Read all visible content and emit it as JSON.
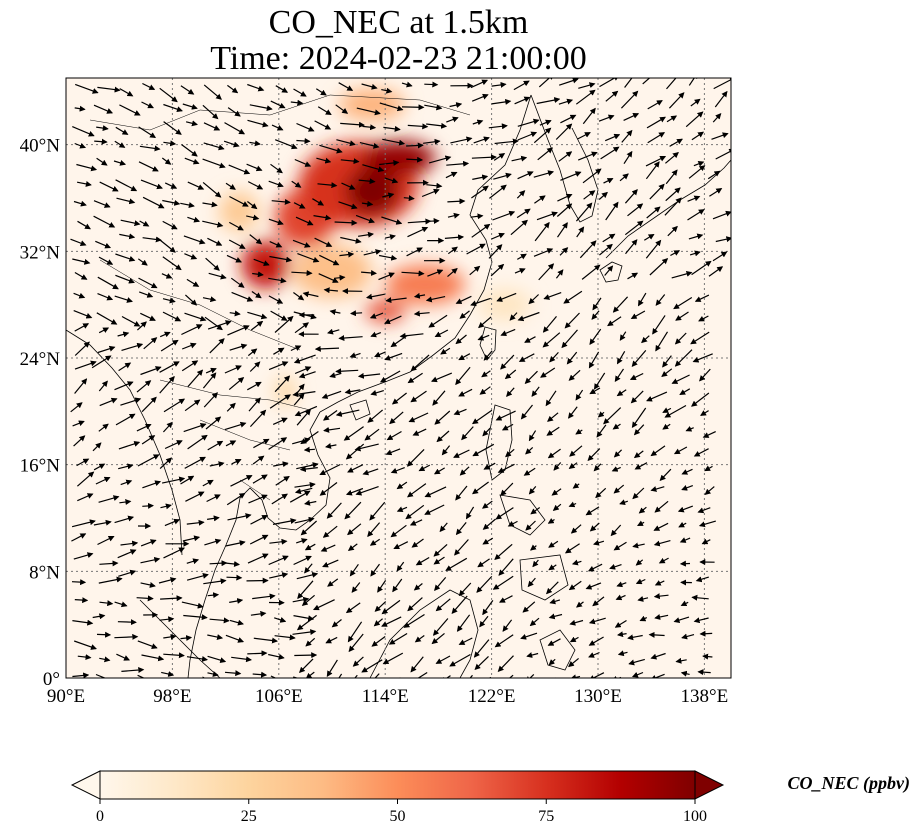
{
  "title": {
    "line1": "CO_NEC at 1.5km",
    "line2": "Time: 2024-02-23 21:00:00"
  },
  "map": {
    "lon_range": [
      90,
      140
    ],
    "lat_range": [
      0,
      45
    ],
    "lon_ticks": [
      {
        "value": 90,
        "label": "90°E"
      },
      {
        "value": 98,
        "label": "98°E"
      },
      {
        "value": 106,
        "label": "106°E"
      },
      {
        "value": 114,
        "label": "114°E"
      },
      {
        "value": 122,
        "label": "122°E"
      },
      {
        "value": 130,
        "label": "130°E"
      },
      {
        "value": 138,
        "label": "138°E"
      }
    ],
    "lat_ticks": [
      {
        "value": 0,
        "label": "0°"
      },
      {
        "value": 8,
        "label": "8°N"
      },
      {
        "value": 16,
        "label": "16°N"
      },
      {
        "value": 24,
        "label": "24°N"
      },
      {
        "value": 32,
        "label": "32°N"
      },
      {
        "value": 40,
        "label": "40°N"
      }
    ],
    "gridlines": "dotted",
    "background_color": "#fff5eb",
    "coastline_color": "#000000",
    "vector_color": "#000000",
    "plumes": [
      {
        "lon": 112.0,
        "lat": 37.0,
        "rlon": 4.5,
        "rlat": 3.2,
        "value": 75
      },
      {
        "lon": 115.0,
        "lat": 39.0,
        "rlon": 2.8,
        "rlat": 1.3,
        "value": 95
      },
      {
        "lon": 113.0,
        "lat": 36.5,
        "rlon": 2.0,
        "rlat": 1.8,
        "value": 100
      },
      {
        "lon": 108.0,
        "lat": 34.5,
        "rlon": 2.3,
        "rlat": 2.2,
        "value": 70
      },
      {
        "lon": 105.0,
        "lat": 31.0,
        "rlon": 1.8,
        "rlat": 1.8,
        "value": 82
      },
      {
        "lon": 117.0,
        "lat": 29.5,
        "rlon": 3.0,
        "rlat": 1.5,
        "value": 55
      },
      {
        "lon": 114.0,
        "lat": 27.5,
        "rlon": 1.5,
        "rlat": 0.8,
        "value": 68
      },
      {
        "lon": 113.0,
        "lat": 43.0,
        "rlon": 2.5,
        "rlat": 1.2,
        "value": 40
      },
      {
        "lon": 103.0,
        "lat": 35.0,
        "rlon": 1.5,
        "rlat": 1.5,
        "value": 30
      },
      {
        "lon": 106.5,
        "lat": 21.5,
        "rlon": 0.8,
        "rlat": 1.2,
        "value": 22
      },
      {
        "lon": 123.0,
        "lat": 28.0,
        "rlon": 2.0,
        "rlat": 1.2,
        "value": 14
      },
      {
        "lon": 110.0,
        "lat": 30.5,
        "rlon": 3.0,
        "rlat": 2.0,
        "value": 35
      }
    ]
  },
  "colorbar": {
    "label": "CO_NEC (ppbv)",
    "min": 0,
    "max": 100,
    "ticks": [
      {
        "value": 0,
        "label": "0"
      },
      {
        "value": 25,
        "label": "25"
      },
      {
        "value": 50,
        "label": "50"
      },
      {
        "value": 75,
        "label": "75"
      },
      {
        "value": 100,
        "label": "100"
      }
    ],
    "extend": "both",
    "colormap": "OrRd",
    "colors": [
      "#fff7ec",
      "#fee8c8",
      "#fdd49e",
      "#fdbb84",
      "#fc8d59",
      "#ef6548",
      "#d7301f",
      "#b30000",
      "#7f0000"
    ]
  }
}
